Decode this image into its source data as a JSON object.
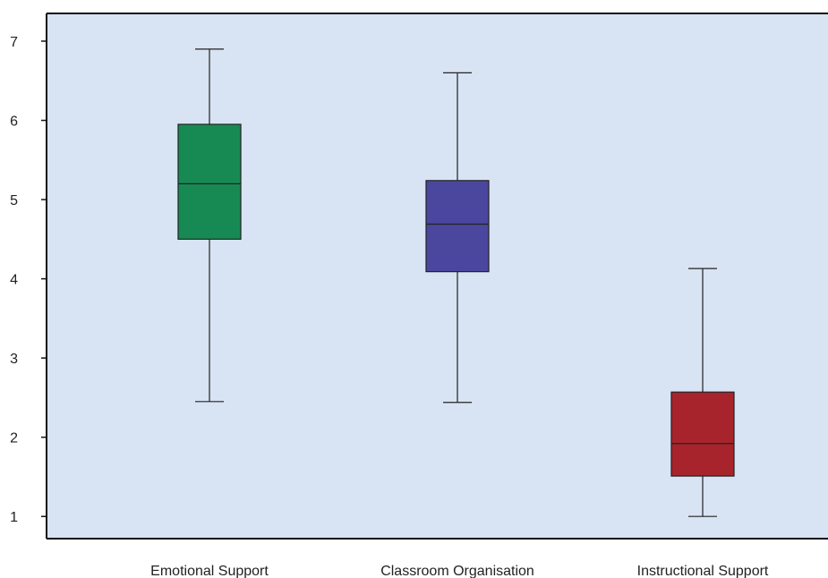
{
  "chart_data": {
    "type": "boxplot",
    "title": "",
    "xlabel": "",
    "ylabel": "",
    "ylim": [
      0.72,
      7.35
    ],
    "yticks": [
      1,
      2,
      3,
      4,
      5,
      6,
      7
    ],
    "grid": false,
    "legend": "none",
    "background_color": "#d8e3f3",
    "categories": [
      "Emotional Support",
      "Classroom Organisation",
      "Instructional Support"
    ],
    "boxes": [
      {
        "category": "Emotional Support",
        "whisker_low": 2.45,
        "q1": 4.5,
        "median": 5.2,
        "q3": 5.95,
        "whisker_high": 6.9,
        "color": "#178a54"
      },
      {
        "category": "Classroom Organisation",
        "whisker_low": 2.44,
        "q1": 4.09,
        "median": 4.69,
        "q3": 5.24,
        "whisker_high": 6.6,
        "color": "#4b479f"
      },
      {
        "category": "Instructional Support",
        "whisker_low": 1.0,
        "q1": 1.51,
        "median": 1.92,
        "q3": 2.57,
        "whisker_high": 4.13,
        "color": "#a8242c"
      }
    ]
  }
}
